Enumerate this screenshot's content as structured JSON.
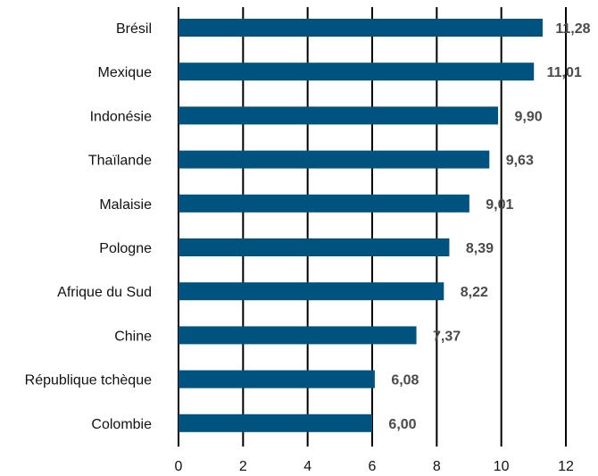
{
  "chart_data": {
    "type": "bar",
    "orientation": "horizontal",
    "categories": [
      "Brésil",
      "Mexique",
      "Indonésie",
      "Thaïlande",
      "Malaisie",
      "Pologne",
      "Afrique du Sud",
      "Chine",
      "République tchèque",
      "Colombie"
    ],
    "values": [
      11.28,
      11.01,
      9.9,
      9.63,
      9.01,
      8.39,
      8.22,
      7.37,
      6.08,
      6.0
    ],
    "value_labels": [
      "11,28",
      "11,01",
      "9,90",
      "9,63",
      "9,01",
      "8,39",
      "8,22",
      "7,37",
      "6,08",
      "6,00"
    ],
    "x_ticks": [
      "0",
      "2",
      "4",
      "6",
      "8",
      "10",
      "12"
    ],
    "xlim": [
      0,
      12
    ],
    "bar_color": "#00527f",
    "grid": "vertical",
    "legend": "none"
  }
}
